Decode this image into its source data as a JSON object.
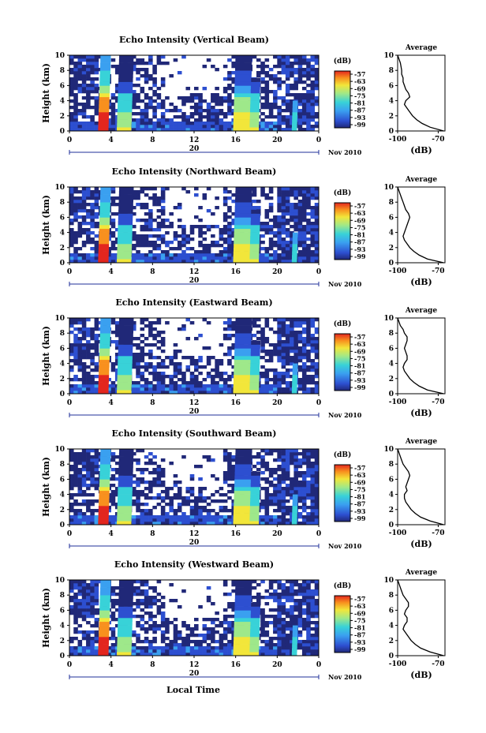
{
  "figure": {
    "x_axis_title": "Local Time",
    "date_day": "20",
    "date_month_year": "Nov 2010"
  },
  "chart_data": [
    {
      "type": "heatmap",
      "title": "Echo Intensity (Vertical Beam)",
      "ylabel": "Height (km)",
      "xlabel": "Local Time",
      "xlim": [
        0,
        24
      ],
      "ylim": [
        0,
        10
      ],
      "x_ticks": [
        "0",
        "4",
        "8",
        "12",
        "16",
        "20",
        "0"
      ],
      "y_ticks": [
        "0",
        "2",
        "4",
        "6",
        "8",
        "10"
      ],
      "colorbar": {
        "label": "(dB)",
        "ticks": [
          "-57",
          "-63",
          "-69",
          "-75",
          "-81",
          "-87",
          "-93",
          "-99"
        ]
      },
      "average_profile": {
        "title": "Average",
        "xlabel": "(dB)",
        "xlim": [
          -100,
          -65
        ],
        "x_ticks": [
          "-100",
          "-70"
        ],
        "height": [
          0,
          0.5,
          1,
          1.5,
          2,
          2.5,
          3,
          3.5,
          4,
          4.5,
          5,
          5.5,
          6,
          6.5,
          7,
          7.5,
          8,
          8.5,
          9,
          9.5,
          10
        ],
        "db": [
          -66,
          -76,
          -82,
          -86,
          -89,
          -91,
          -93,
          -95,
          -94,
          -91,
          -92,
          -94,
          -95,
          -96,
          -96,
          -97,
          -97,
          -97.5,
          -98,
          -99,
          -100
        ]
      }
    },
    {
      "type": "heatmap",
      "title": "Echo Intensity (Northward Beam)",
      "ylabel": "Height (km)",
      "xlabel": "Local Time",
      "xlim": [
        0,
        24
      ],
      "ylim": [
        0,
        10
      ],
      "x_ticks": [
        "0",
        "4",
        "8",
        "12",
        "16",
        "20",
        "0"
      ],
      "y_ticks": [
        "0",
        "2",
        "4",
        "6",
        "8",
        "10"
      ],
      "colorbar": {
        "label": "(dB)",
        "ticks": [
          "-57",
          "-63",
          "-69",
          "-75",
          "-81",
          "-87",
          "-93",
          "-99"
        ]
      },
      "average_profile": {
        "title": "Average",
        "xlabel": "(dB)",
        "xlim": [
          -100,
          -65
        ],
        "x_ticks": [
          "-100",
          "-70"
        ],
        "height": [
          0,
          0.5,
          1,
          1.5,
          2,
          2.5,
          3,
          3.5,
          4,
          4.5,
          5,
          5.5,
          6,
          6.5,
          7,
          7.5,
          8,
          8.5,
          9,
          9.5,
          10
        ],
        "db": [
          -66,
          -78,
          -84,
          -88,
          -91,
          -93,
          -95,
          -96,
          -95,
          -94,
          -93,
          -92,
          -91,
          -92,
          -94,
          -95,
          -96,
          -97,
          -98,
          -99,
          -100
        ]
      }
    },
    {
      "type": "heatmap",
      "title": "Echo Intensity (Eastward Beam)",
      "ylabel": "Height (km)",
      "xlabel": "Local Time",
      "xlim": [
        0,
        24
      ],
      "ylim": [
        0,
        10
      ],
      "x_ticks": [
        "0",
        "4",
        "8",
        "12",
        "16",
        "20",
        "0"
      ],
      "y_ticks": [
        "0",
        "2",
        "4",
        "6",
        "8",
        "10"
      ],
      "colorbar": {
        "label": "(dB)",
        "ticks": [
          "-57",
          "-63",
          "-69",
          "-75",
          "-81",
          "-87",
          "-93",
          "-99"
        ]
      },
      "average_profile": {
        "title": "Average",
        "xlabel": "(dB)",
        "xlim": [
          -100,
          -65
        ],
        "x_ticks": [
          "-100",
          "-70"
        ],
        "height": [
          0,
          0.5,
          1,
          1.5,
          2,
          2.5,
          3,
          3.5,
          4,
          4.5,
          5,
          5.5,
          6,
          6.5,
          7,
          7.5,
          8,
          8.5,
          9,
          9.5,
          10
        ],
        "db": [
          -66,
          -78,
          -84,
          -88,
          -91,
          -93,
          -95,
          -96,
          -95,
          -93,
          -93,
          -94,
          -95,
          -94,
          -93,
          -93,
          -95,
          -96,
          -98,
          -99,
          -100
        ]
      }
    },
    {
      "type": "heatmap",
      "title": "Echo Intensity (Southward Beam)",
      "ylabel": "Height (km)",
      "xlabel": "Local Time",
      "xlim": [
        0,
        24
      ],
      "ylim": [
        0,
        10
      ],
      "x_ticks": [
        "0",
        "4",
        "8",
        "12",
        "16",
        "20",
        "0"
      ],
      "y_ticks": [
        "0",
        "2",
        "4",
        "6",
        "8",
        "10"
      ],
      "colorbar": {
        "label": "(dB)",
        "ticks": [
          "-57",
          "-63",
          "-69",
          "-75",
          "-81",
          "-87",
          "-93",
          "-99"
        ]
      },
      "average_profile": {
        "title": "Average",
        "xlabel": "(dB)",
        "xlim": [
          -100,
          -65
        ],
        "x_ticks": [
          "-100",
          "-70"
        ],
        "height": [
          0,
          0.5,
          1,
          1.5,
          2,
          2.5,
          3,
          3.5,
          4,
          4.5,
          5,
          5.5,
          6,
          6.5,
          7,
          7.5,
          8,
          8.5,
          9,
          9.5,
          10
        ],
        "db": [
          -66,
          -76,
          -83,
          -87,
          -90,
          -92,
          -94,
          -95,
          -95,
          -93,
          -94,
          -93,
          -92,
          -91,
          -92,
          -94,
          -96,
          -97,
          -98,
          -99,
          -100
        ]
      }
    },
    {
      "type": "heatmap",
      "title": "Echo Intensity (Westward Beam)",
      "ylabel": "Height (km)",
      "xlabel": "Local Time",
      "xlim": [
        0,
        24
      ],
      "ylim": [
        0,
        10
      ],
      "x_ticks": [
        "0",
        "4",
        "8",
        "12",
        "16",
        "20",
        "0"
      ],
      "y_ticks": [
        "0",
        "2",
        "4",
        "6",
        "8",
        "10"
      ],
      "colorbar": {
        "label": "(dB)",
        "ticks": [
          "-57",
          "-63",
          "-69",
          "-75",
          "-81",
          "-87",
          "-93",
          "-99"
        ]
      },
      "average_profile": {
        "title": "Average",
        "xlabel": "(dB)",
        "xlim": [
          -100,
          -65
        ],
        "x_ticks": [
          "-100",
          "-70"
        ],
        "height": [
          0,
          0.5,
          1,
          1.5,
          2,
          2.5,
          3,
          3.5,
          4,
          4.5,
          5,
          5.5,
          6,
          6.5,
          7,
          7.5,
          8,
          8.5,
          9,
          9.5,
          10
        ],
        "db": [
          -66,
          -76,
          -83,
          -87,
          -90,
          -92,
          -94,
          -96,
          -95,
          -93,
          -93,
          -95,
          -94,
          -92,
          -92,
          -94,
          -96,
          -97,
          -98,
          -99,
          -100
        ]
      }
    }
  ]
}
